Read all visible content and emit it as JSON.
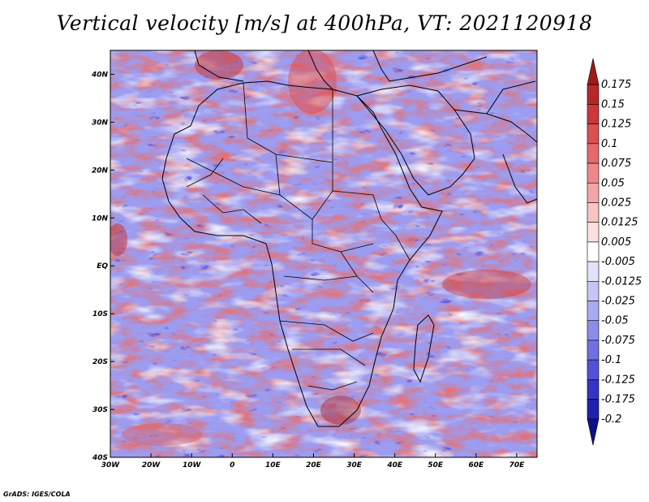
{
  "title": "Vertical velocity [m/s] at 400hPa, VT: 2021120918",
  "credit": "GrADS: IGES/COLA",
  "map": {
    "lon_range": [
      -30,
      75
    ],
    "lat_range": [
      -40,
      45
    ],
    "lon_ticks": [
      "30W",
      "20W",
      "10W",
      "0",
      "10E",
      "20E",
      "30E",
      "40E",
      "50E",
      "60E",
      "70E"
    ],
    "lat_ticks": [
      "40N",
      "30N",
      "20N",
      "10N",
      "EQ",
      "10S",
      "20S",
      "30S",
      "40S"
    ]
  },
  "colorbar": {
    "labels": [
      "0.175",
      "0.15",
      "0.125",
      "0.1",
      "0.075",
      "0.05",
      "0.025",
      "0.0125",
      "0.005",
      "-0.005",
      "-0.0125",
      "-0.025",
      "-0.05",
      "-0.075",
      "-0.1",
      "-0.125",
      "-0.175",
      "-0.2"
    ],
    "colors": [
      "#a01818",
      "#b82828",
      "#cc3838",
      "#dc5050",
      "#e66a6a",
      "#ee8888",
      "#f4a6a6",
      "#f8c4c4",
      "#fce0e0",
      "#ffffff",
      "#e2e2fc",
      "#c6c6f6",
      "#aaaaf0",
      "#8c8cea",
      "#7070e2",
      "#5252d8",
      "#3434c8",
      "#2020b0",
      "#10108c"
    ]
  },
  "colors": {
    "positive": "#e87070",
    "negative": "#7878e8",
    "coastline": "#000000"
  }
}
